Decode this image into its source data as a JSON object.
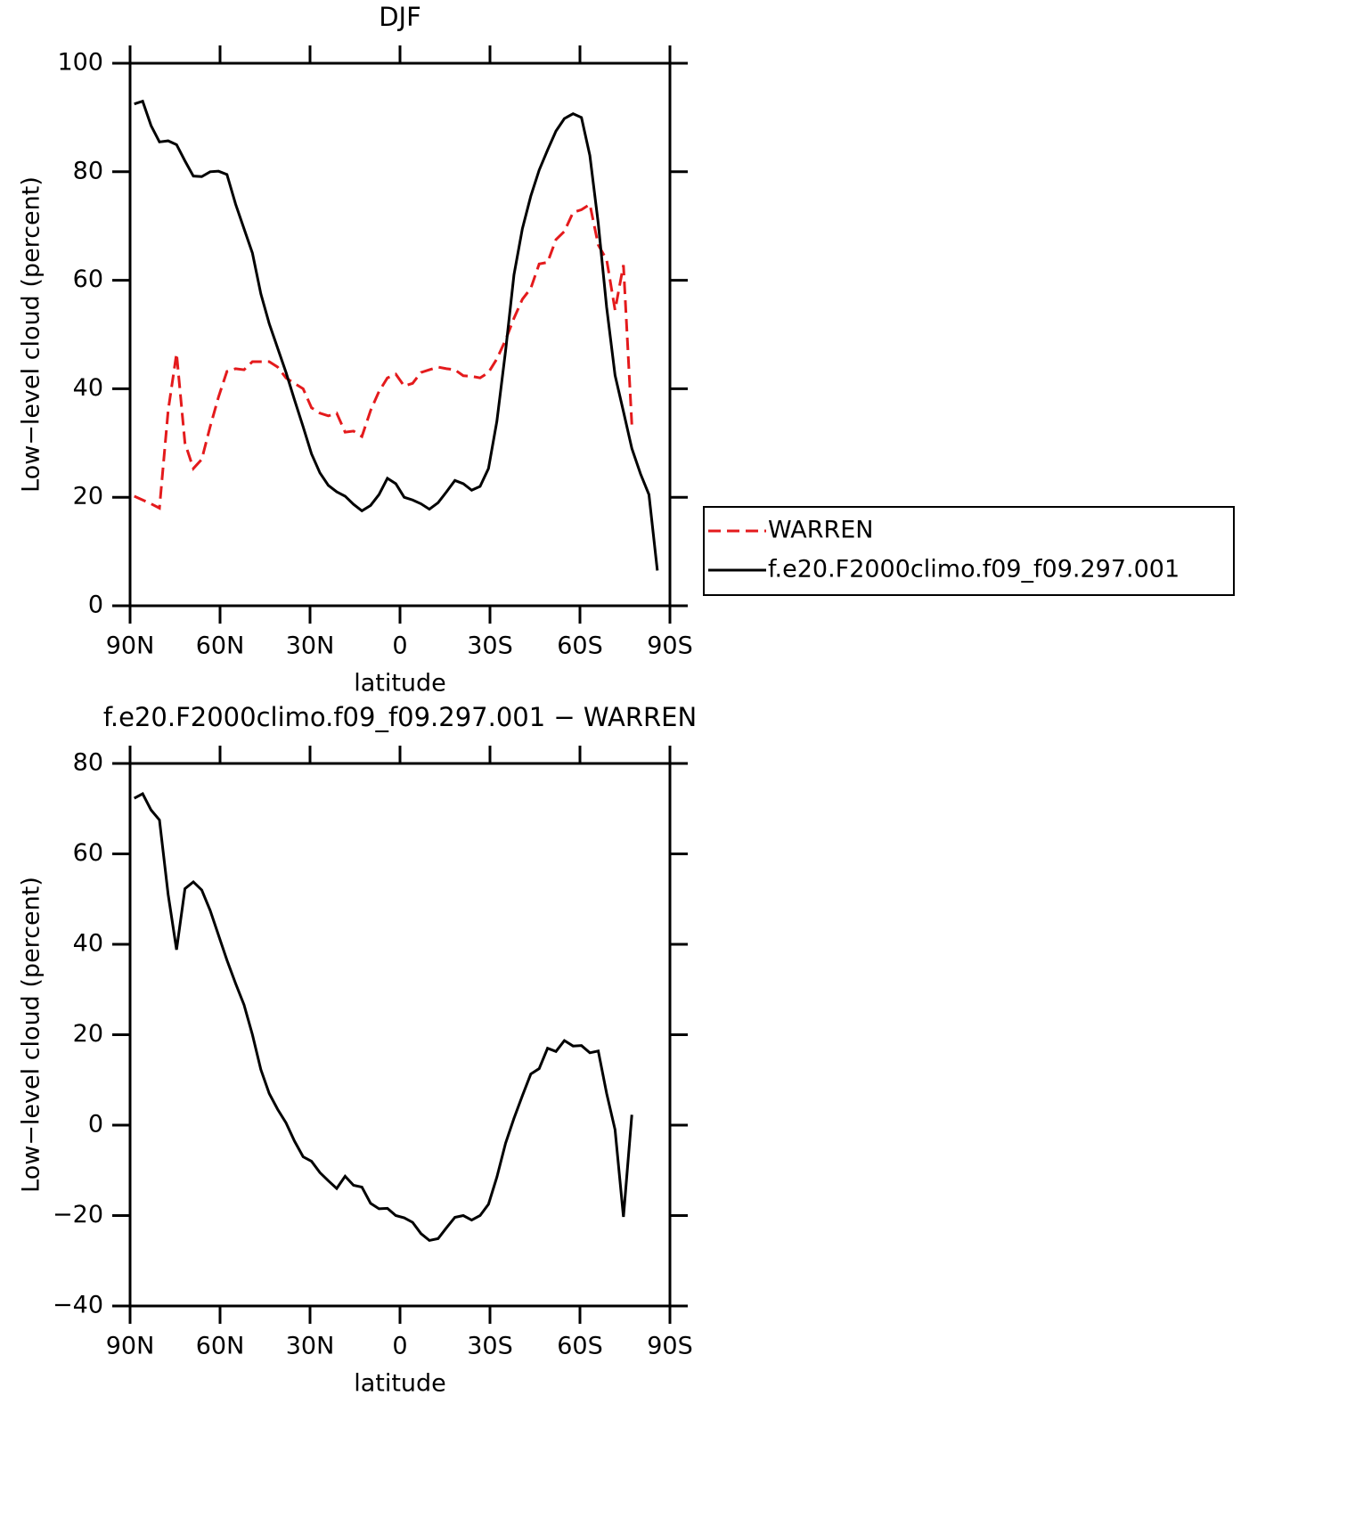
{
  "chart_data": [
    {
      "type": "line",
      "title": "DJF",
      "xlabel": "latitude",
      "ylabel": "Low−level cloud (percent)",
      "x": [
        88.6,
        85.8,
        83.0,
        80.2,
        77.3,
        74.5,
        71.7,
        68.9,
        66.1,
        63.3,
        60.5,
        57.7,
        54.8,
        52.0,
        49.2,
        46.4,
        43.6,
        40.8,
        38.0,
        35.2,
        32.3,
        29.5,
        26.7,
        23.9,
        21.1,
        18.3,
        15.5,
        12.7,
        9.8,
        7.0,
        4.2,
        1.4,
        -1.4,
        -4.2,
        -7.0,
        -9.8,
        -12.7,
        -15.5,
        -18.3,
        -21.1,
        -23.9,
        -26.7,
        -29.5,
        -32.3,
        -35.2,
        -38.0,
        -40.8,
        -43.6,
        -46.4,
        -49.2,
        -52.0,
        -54.8,
        -57.7,
        -60.5,
        -63.3,
        -66.1,
        -68.9,
        -71.7,
        -74.5,
        -77.3,
        -80.2,
        -83.0,
        -85.8,
        -88.6
      ],
      "xlim": [
        90,
        -90
      ],
      "xticks": [
        {
          "value": 90,
          "label": "90N"
        },
        {
          "value": 60,
          "label": "60N"
        },
        {
          "value": 30,
          "label": "30N"
        },
        0,
        {
          "value": -30,
          "label": "30S"
        },
        {
          "value": -60,
          "label": "60S"
        },
        {
          "value": -90,
          "label": "90S"
        }
      ],
      "ylim": [
        0,
        100
      ],
      "yticks": [
        0,
        20,
        40,
        60,
        80,
        100
      ],
      "legend": "right",
      "series": [
        {
          "name": "WARREN",
          "color": "#e41a1c",
          "line_style": "dashed",
          "values": [
            20.2,
            19.5,
            18.8,
            18,
            36,
            46.5,
            30,
            25.3,
            27,
            33,
            38.5,
            43.2,
            43.7,
            43.5,
            45,
            45,
            45,
            44,
            42,
            41,
            40,
            36.5,
            35.5,
            35,
            35.5,
            32,
            32.2,
            31.2,
            36,
            39.5,
            42,
            42.7,
            40.5,
            41,
            43,
            43.5,
            44,
            43.7,
            43.5,
            42.4,
            42.3,
            42,
            43,
            45.5,
            49,
            53,
            56.5,
            58.5,
            63,
            63.3,
            67.5,
            69,
            72.5,
            73,
            74,
            66.5,
            63.8,
            54.5,
            62.8,
            33.4,
            null,
            null,
            null,
            null
          ]
        },
        {
          "name": "f.e20.F2000climo.f09_f09.297.001",
          "color": "#000000",
          "line_style": "solid",
          "values": [
            92.5,
            93,
            88.5,
            85.5,
            85.7,
            85,
            82,
            79.2,
            79.1,
            80,
            80.1,
            79.5,
            74,
            69.5,
            65,
            57.5,
            52,
            47.5,
            43,
            38,
            33,
            28,
            24.5,
            22.2,
            21,
            20.2,
            18.7,
            17.5,
            18.5,
            20.5,
            23.5,
            22.5,
            20,
            19.5,
            18.8,
            17.8,
            19,
            21,
            23.1,
            22.5,
            21.3,
            22,
            25.3,
            34,
            47,
            61,
            69.5,
            75.5,
            80.3,
            84,
            87.5,
            89.8,
            90.7,
            90,
            83,
            70.5,
            55,
            42.5,
            35.8,
            29,
            24.3,
            20.5,
            6.5,
            null
          ]
        }
      ]
    },
    {
      "type": "line",
      "title": "f.e20.F2000climo.f09_f09.297.001 − WARREN",
      "xlabel": "latitude",
      "ylabel": "Low−level cloud (percent)",
      "x": [
        88.6,
        85.8,
        83.0,
        80.2,
        77.3,
        74.5,
        71.7,
        68.9,
        66.1,
        63.3,
        60.5,
        57.7,
        54.8,
        52.0,
        49.2,
        46.4,
        43.6,
        40.8,
        38.0,
        35.2,
        32.3,
        29.5,
        26.7,
        23.9,
        21.1,
        18.3,
        15.5,
        12.7,
        9.8,
        7.0,
        4.2,
        1.4,
        -1.4,
        -4.2,
        -7.0,
        -9.8,
        -12.7,
        -15.5,
        -18.3,
        -21.1,
        -23.9,
        -26.7,
        -29.5,
        -32.3,
        -35.2,
        -38.0,
        -40.8,
        -43.6,
        -46.4,
        -49.2,
        -52.0,
        -54.8,
        -57.7,
        -60.5,
        -63.3,
        -66.1,
        -68.9,
        -71.7,
        -74.5,
        -77.3,
        -80.2,
        -83.0,
        -85.8,
        -88.6
      ],
      "xlim": [
        90,
        -90
      ],
      "xticks": [
        {
          "value": 90,
          "label": "90N"
        },
        {
          "value": 60,
          "label": "60N"
        },
        {
          "value": 30,
          "label": "30N"
        },
        0,
        {
          "value": -30,
          "label": "30S"
        },
        {
          "value": -60,
          "label": "60S"
        },
        {
          "value": -90,
          "label": "90S"
        }
      ],
      "ylim": [
        -40,
        80
      ],
      "yticks": [
        {
          "value": -40,
          "label": "−40"
        },
        {
          "value": -20,
          "label": "−20"
        },
        0,
        20,
        40,
        60,
        80
      ],
      "series": [
        {
          "color": "#000000",
          "line_style": "solid",
          "values": [
            72.3,
            73.3,
            69.7,
            67.5,
            51,
            38.8,
            52.3,
            53.8,
            52,
            47.5,
            42,
            36.5,
            31.3,
            26.6,
            20,
            12.3,
            7,
            3.5,
            0.5,
            -3.5,
            -7,
            -8,
            -10.5,
            -12.3,
            -14,
            -11.3,
            -13.3,
            -13.7,
            -17.3,
            -18.5,
            -18.4,
            -20,
            -20.5,
            -21.5,
            -24,
            -25.5,
            -25.1,
            -22.7,
            -20.4,
            -20,
            -21,
            -20,
            -17.5,
            -11.5,
            -4,
            1.5,
            6.5,
            11.3,
            12.5,
            17,
            16.3,
            18.7,
            17.5,
            17.6,
            16,
            16.4,
            7,
            -1,
            -20.3,
            2.3,
            null,
            null,
            null,
            null
          ]
        }
      ]
    }
  ]
}
